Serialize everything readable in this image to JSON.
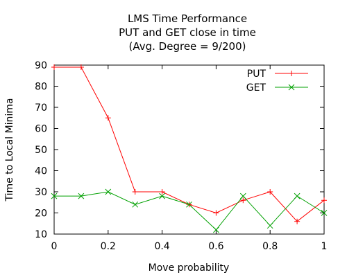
{
  "chart_data": {
    "type": "line",
    "title": "LMS Time Performance",
    "subtitle": "PUT and GET close in time",
    "subtitle2": "(Avg. Degree = 9/200)",
    "xlabel": "Move probability",
    "ylabel": "Time to Local Minima",
    "xlim": [
      0,
      1
    ],
    "ylim": [
      10,
      90
    ],
    "xticks": [
      0,
      0.2,
      0.4,
      0.6,
      0.8,
      1
    ],
    "xtick_labels": [
      "0",
      "0.2",
      "0.4",
      "0.6",
      "0.8",
      "1"
    ],
    "yticks": [
      10,
      20,
      30,
      40,
      50,
      60,
      70,
      80,
      90
    ],
    "ytick_labels": [
      "10",
      "20",
      "30",
      "40",
      "50",
      "60",
      "70",
      "80",
      "90"
    ],
    "grid": false,
    "legend_position": "top-right",
    "x": [
      0,
      0.1,
      0.2,
      0.3,
      0.4,
      0.5,
      0.6,
      0.7,
      0.8,
      0.9,
      1.0
    ],
    "series": [
      {
        "name": "PUT",
        "color": "#ff0000",
        "marker": "plus",
        "values": [
          89,
          89,
          65,
          30,
          30,
          24,
          20,
          26,
          30,
          16,
          26
        ]
      },
      {
        "name": "GET",
        "color": "#00a000",
        "marker": "cross",
        "values": [
          28,
          28,
          30,
          24,
          28,
          24,
          12,
          28,
          14,
          28,
          20
        ]
      }
    ]
  }
}
